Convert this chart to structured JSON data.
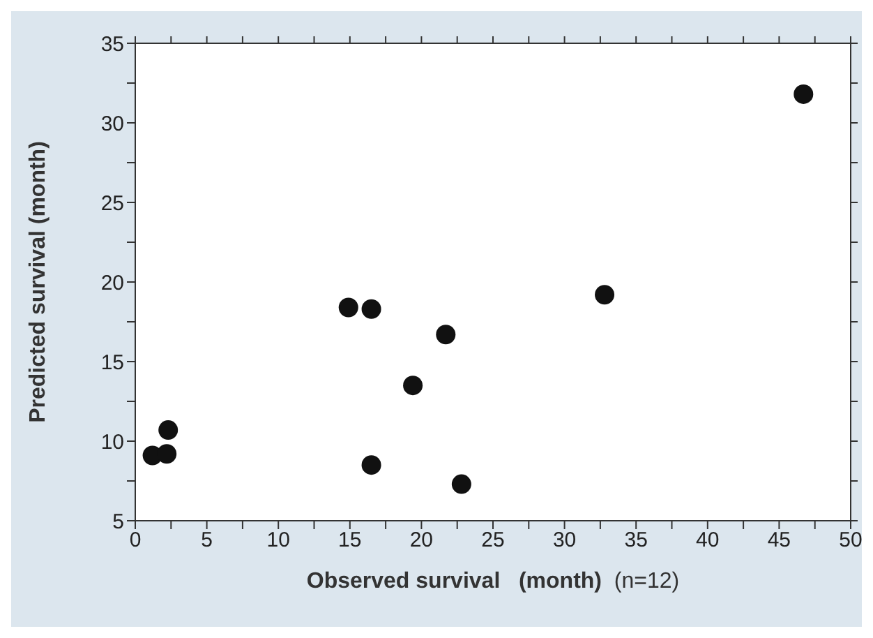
{
  "chart_data": {
    "type": "scatter",
    "xlabel": "Observed survival   (month)",
    "ylabel": "Predicted survival (month)",
    "annotations": [
      "(n=12)"
    ],
    "x": [
      1.2,
      2.2,
      2.3,
      14.9,
      16.5,
      16.5,
      19.4,
      21.7,
      22.8,
      32.8,
      46.7
    ],
    "series": [
      {
        "color": "#111111",
        "values": [
          9.1,
          9.2,
          10.7,
          18.4,
          18.3,
          8.5,
          13.5,
          16.7,
          7.3,
          19.2,
          31.8
        ]
      }
    ],
    "xlim": [
      0,
      50
    ],
    "ylim": [
      5,
      35
    ],
    "xticks": [
      0,
      {
        "value": 2.5,
        "label": null
      },
      5,
      {
        "value": 7.5,
        "label": null
      },
      10,
      {
        "value": 12.5,
        "label": null
      },
      15,
      {
        "value": 17.5,
        "label": null
      },
      20,
      {
        "value": 22.5,
        "label": null
      },
      25,
      {
        "value": 27.5,
        "label": null
      },
      30,
      {
        "value": 32.5,
        "label": null
      },
      35,
      {
        "value": 37.5,
        "label": null
      },
      40,
      {
        "value": 42.5,
        "label": null
      },
      45,
      {
        "value": 47.5,
        "label": null
      },
      50
    ],
    "yticks": [
      5,
      {
        "value": 7.5,
        "label": null
      },
      10,
      {
        "value": 12.5,
        "label": null
      },
      15,
      {
        "value": 17.5,
        "label": null
      },
      20,
      {
        "value": 22.5,
        "label": null
      },
      25,
      {
        "value": 27.5,
        "label": null
      },
      30,
      {
        "value": 32.5,
        "label": null
      },
      35
    ],
    "marker": "circle",
    "grid": false,
    "legend": false
  }
}
